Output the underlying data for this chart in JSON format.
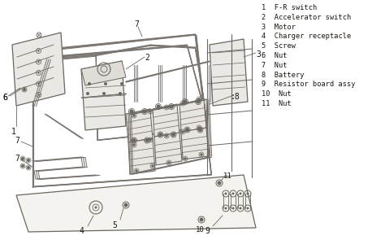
{
  "bg_color": "#f0ede8",
  "line_color": "#6a6660",
  "wire_color": "#7a7570",
  "legend_items": [
    "1  F-R switch",
    "2  Accelerator switch",
    "3  Motor",
    "4  Charger receptacle",
    "5  Screw",
    "6  Nut",
    "7  Nut",
    "8  Battery",
    "9  Resistor board assy",
    "10  Nut",
    "11  Nut"
  ],
  "legend_fontsize": 6.2,
  "legend_color": "#1a1510",
  "figsize": [
    4.74,
    2.95
  ],
  "dpi": 100
}
